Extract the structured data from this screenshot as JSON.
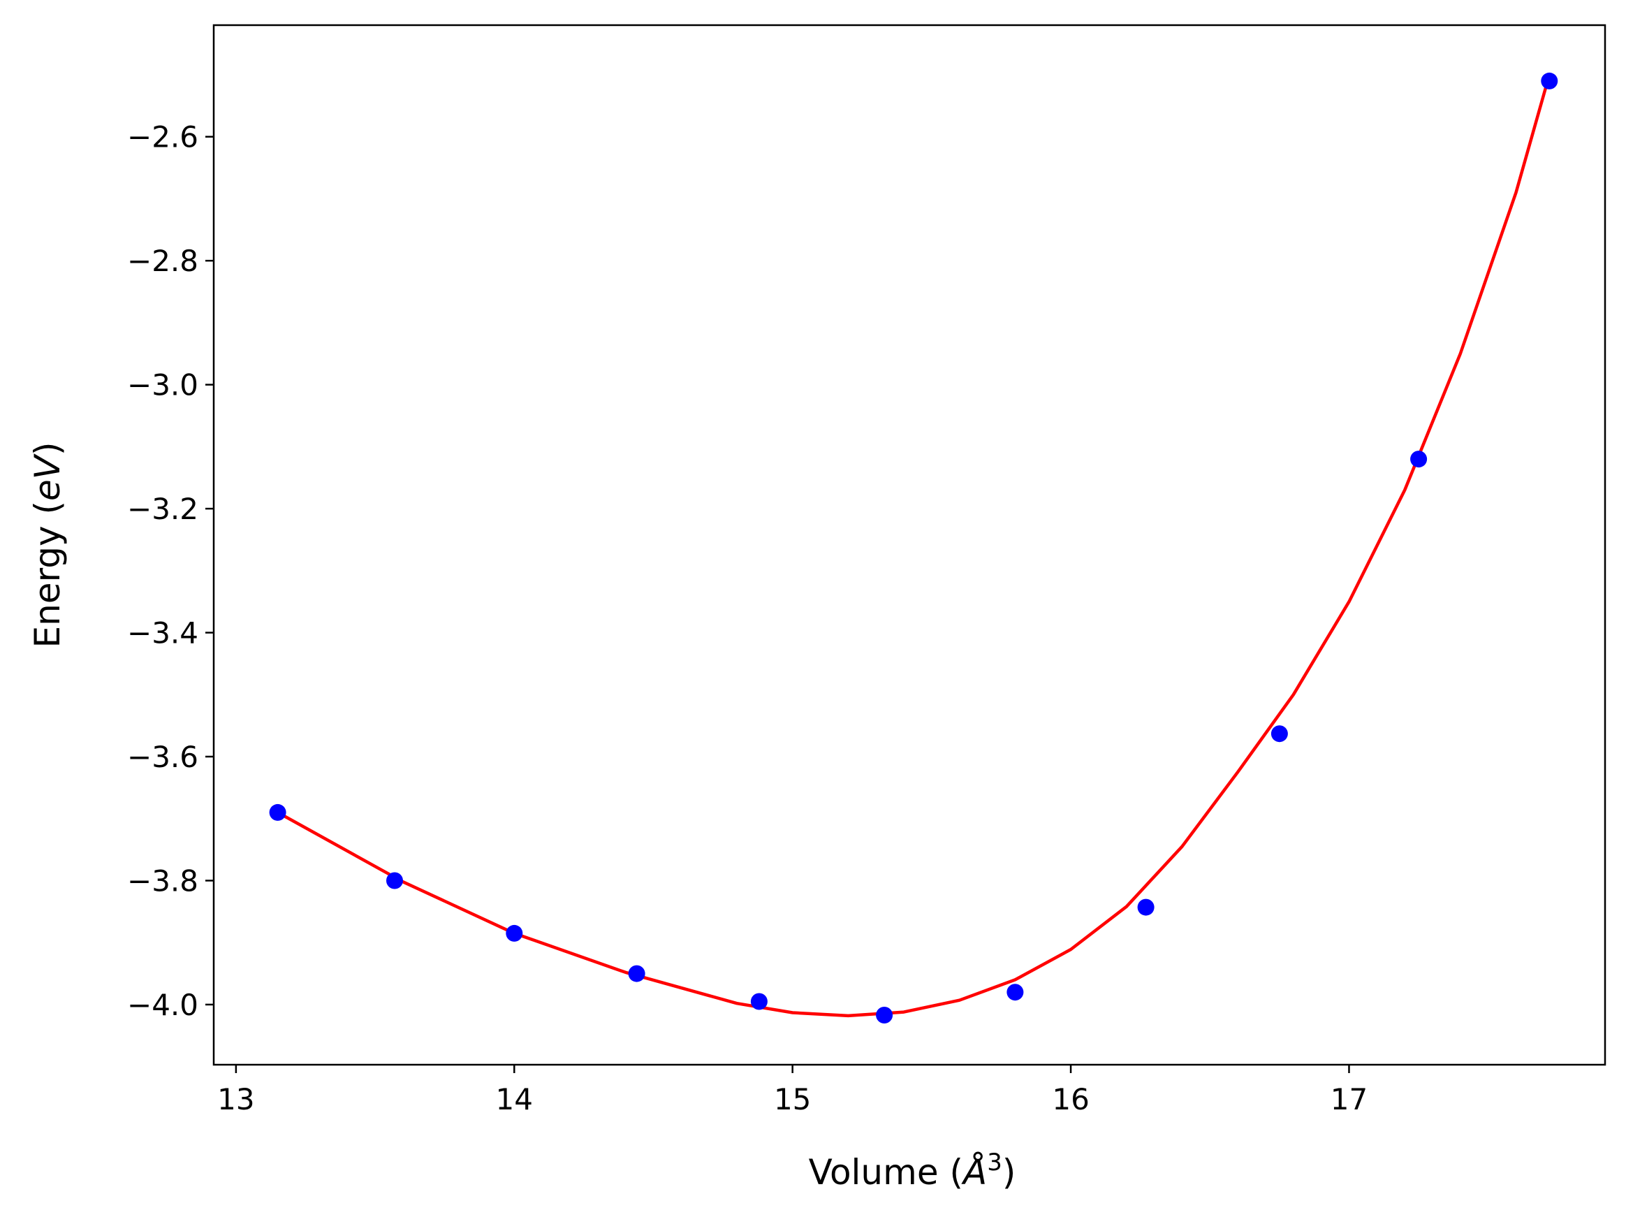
{
  "chart_data": {
    "type": "scatter",
    "title": "",
    "xlabel": "Volume ($\\AA^3$)",
    "xlabel_parts": {
      "prefix": "Volume (",
      "symbol": "Å",
      "superscript": "3",
      "suffix": ")"
    },
    "ylabel": "Energy ($eV$)",
    "ylabel_parts": {
      "prefix": "Energy (",
      "italic": "eV",
      "suffix": ")"
    },
    "xlim": [
      12.92,
      17.92
    ],
    "ylim": [
      -4.097,
      -2.42
    ],
    "xticks": [
      13,
      14,
      15,
      16,
      17
    ],
    "xtick_labels": [
      "13",
      "14",
      "15",
      "16",
      "17"
    ],
    "yticks": [
      -4.0,
      -3.8,
      -3.6,
      -3.4,
      -3.2,
      -3.0,
      -2.8,
      -2.6
    ],
    "ytick_labels": [
      "−4.0",
      "−3.8",
      "−3.6",
      "−3.4",
      "−3.2",
      "−3.0",
      "−2.8",
      "−2.6"
    ],
    "grid": false,
    "legend": "none",
    "series": [
      {
        "kind": "markers",
        "color": "#0000ff",
        "x": [
          13.15,
          13.57,
          14.0,
          14.44,
          14.88,
          15.33,
          15.8,
          16.27,
          16.75,
          17.25,
          17.72
        ],
        "y": [
          -3.69,
          -3.8,
          -3.885,
          -3.95,
          -3.995,
          -4.017,
          -3.98,
          -3.843,
          -3.563,
          -3.12,
          -2.51
        ]
      },
      {
        "kind": "line",
        "color": "#ff0000",
        "x": [
          13.15,
          13.6,
          14.0,
          14.4,
          14.8,
          15.0,
          15.2,
          15.4,
          15.6,
          15.8,
          16.0,
          16.2,
          16.4,
          16.6,
          16.8,
          17.0,
          17.2,
          17.4,
          17.6,
          17.72
        ],
        "y": [
          -3.69,
          -3.802,
          -3.885,
          -3.948,
          -3.998,
          -4.013,
          -4.018,
          -4.012,
          -3.993,
          -3.96,
          -3.911,
          -3.842,
          -3.745,
          -3.625,
          -3.5,
          -3.35,
          -3.17,
          -2.95,
          -2.69,
          -2.5
        ]
      }
    ]
  }
}
